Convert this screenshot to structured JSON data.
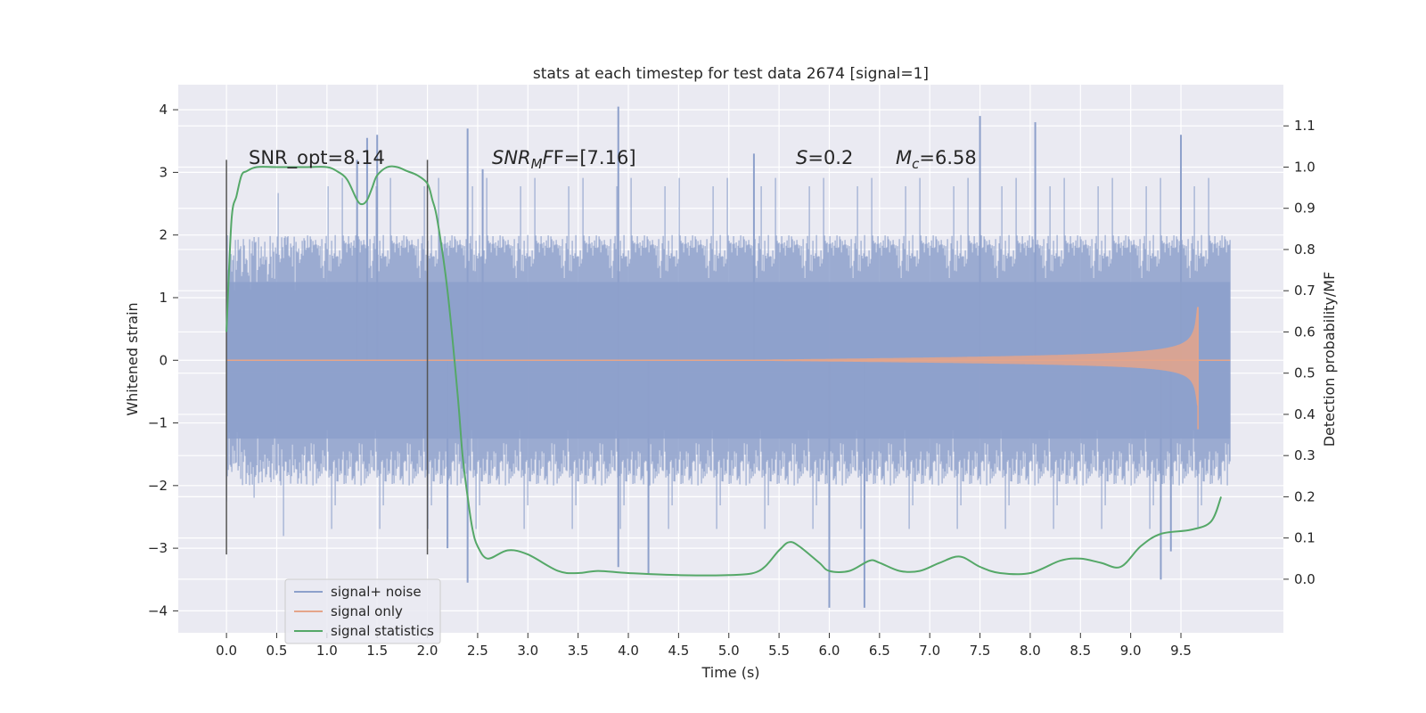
{
  "chart_data": {
    "type": "line",
    "title": "stats at each timestep for test data 2674 [signal=1]",
    "xlabel": "Time (s)",
    "ylabel": "Whitened strain",
    "y2label": "Detection probability/MF",
    "xlim": [
      -0.48,
      10.52
    ],
    "ylim": [
      -4.35,
      4.4
    ],
    "y2lim": [
      -0.13,
      1.2
    ],
    "x_ticks": [
      "0.0",
      "0.5",
      "1.0",
      "1.5",
      "2.0",
      "2.5",
      "3.0",
      "3.5",
      "4.0",
      "4.5",
      "5.0",
      "5.5",
      "6.0",
      "6.5",
      "7.0",
      "7.5",
      "8.0",
      "8.5",
      "9.0",
      "9.5"
    ],
    "y_ticks": [
      "4",
      "3",
      "2",
      "1",
      "0",
      "−1",
      "−2",
      "−3",
      "−4"
    ],
    "y2_ticks": [
      "1.1",
      "1.0",
      "0.9",
      "0.8",
      "0.7",
      "0.6",
      "0.5",
      "0.4",
      "0.3",
      "0.2",
      "0.1",
      "0.0"
    ],
    "grid": true,
    "legend_position": "bottom-left",
    "colors": {
      "background": "#eaeaf2",
      "grid": "#ffffff",
      "noise": "#8da0cb",
      "signal": "#e5a58a",
      "stats": "#55a868",
      "markers": "#555555"
    },
    "annotations": {
      "snr_opt": "SNR_opt=8.14",
      "snr_mf_pre": "SNR",
      "snr_mf_sub": "M",
      "snr_mf_post": "F=[7.16]",
      "s_pre": "S",
      "s_post": "=0.2",
      "mc_pre": "M",
      "mc_sub": "c",
      "mc_post": "=6.58"
    },
    "markers_x": [
      0.0,
      2.0
    ],
    "series": [
      {
        "name": "signal+ noise",
        "kind": "noise",
        "x_range": [
          0,
          9.99
        ],
        "amplitude_envelope": [
          -2.0,
          2.0
        ],
        "peaks": [
          [
            1.3,
            3.2
          ],
          [
            1.4,
            3.55
          ],
          [
            1.5,
            3.6
          ],
          [
            2.4,
            3.7
          ],
          [
            2.55,
            3.05
          ],
          [
            3.9,
            4.05
          ],
          [
            5.25,
            3.3
          ],
          [
            7.5,
            3.9
          ],
          [
            8.05,
            3.8
          ],
          [
            9.5,
            3.6
          ],
          [
            2.2,
            -3.0
          ],
          [
            2.4,
            -3.55
          ],
          [
            3.9,
            -3.3
          ],
          [
            4.2,
            -3.4
          ],
          [
            6.0,
            -3.95
          ],
          [
            6.35,
            -3.95
          ],
          [
            9.3,
            -3.5
          ],
          [
            9.4,
            -3.05
          ]
        ]
      },
      {
        "name": "signal only",
        "kind": "chirp",
        "x_range": [
          5.0,
          9.67
        ],
        "peak_amplitude": 0.85
      },
      {
        "name": "signal statistics",
        "kind": "line",
        "axis": "right",
        "x": [
          0.0,
          0.05,
          0.1,
          0.15,
          0.2,
          0.3,
          0.5,
          0.8,
          1.0,
          1.1,
          1.2,
          1.3,
          1.35,
          1.4,
          1.45,
          1.5,
          1.6,
          1.7,
          1.8,
          1.9,
          2.0,
          2.05,
          2.1,
          2.2,
          2.3,
          2.35,
          2.4,
          2.45,
          2.5,
          2.6,
          2.8,
          3.0,
          3.3,
          3.5,
          3.7,
          4.0,
          4.5,
          5.0,
          5.3,
          5.5,
          5.6,
          5.7,
          5.9,
          6.0,
          6.2,
          6.4,
          6.5,
          6.7,
          6.9,
          7.1,
          7.3,
          7.5,
          7.7,
          8.0,
          8.3,
          8.5,
          8.7,
          8.9,
          9.1,
          9.3,
          9.6,
          9.8,
          9.9
        ],
        "y": [
          0.6,
          0.87,
          0.93,
          0.98,
          0.99,
          1.0,
          1.0,
          1.0,
          1.0,
          0.99,
          0.97,
          0.92,
          0.91,
          0.92,
          0.95,
          0.98,
          1.0,
          1.0,
          0.99,
          0.98,
          0.96,
          0.92,
          0.87,
          0.7,
          0.45,
          0.3,
          0.2,
          0.12,
          0.08,
          0.05,
          0.07,
          0.06,
          0.02,
          0.015,
          0.02,
          0.015,
          0.01,
          0.01,
          0.02,
          0.07,
          0.09,
          0.08,
          0.04,
          0.02,
          0.02,
          0.045,
          0.04,
          0.02,
          0.02,
          0.04,
          0.055,
          0.03,
          0.015,
          0.015,
          0.045,
          0.05,
          0.04,
          0.03,
          0.08,
          0.11,
          0.12,
          0.14,
          0.2
        ]
      }
    ]
  }
}
